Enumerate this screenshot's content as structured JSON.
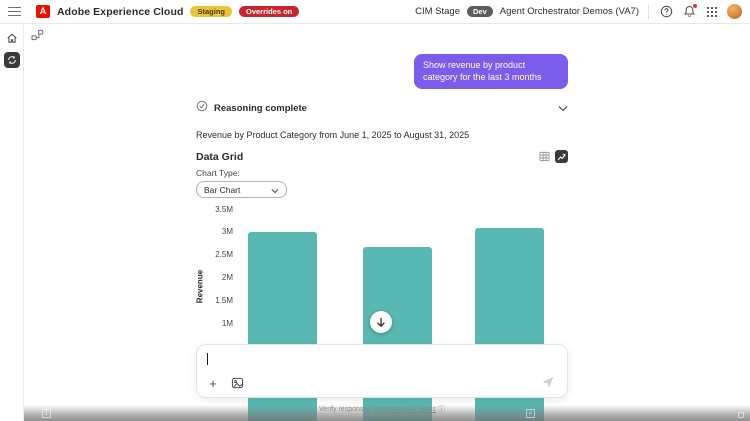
{
  "topbar": {
    "brand": "Adobe Experience Cloud",
    "staging_badge": "Staging",
    "overrides_badge": "Overrides on",
    "env_label": "CIM Stage",
    "dev_badge": "Dev",
    "org_name": "Agent Orchestrator Demos (VA7)"
  },
  "chat": {
    "user_message": "Show revenue by product category for the last 3 months",
    "reasoning_status": "Reasoning complete",
    "answer_text": "Revenue by Product Category from June 1, 2025 to August 31, 2025",
    "footer_note": "Verify responses",
    "footer_link": "Generative AI Terms"
  },
  "data_grid": {
    "title": "Data Grid",
    "chart_type_label": "Chart Type:",
    "chart_type_value": "Bar Chart"
  },
  "chart_data": {
    "type": "bar",
    "title": "Revenue by Product Category from June 1, 2025 to August 31, 2025",
    "ylabel": "Revenue",
    "yticks": [
      "3.5M",
      "3M",
      "2.5M",
      "2M",
      "1.5M",
      "1M"
    ],
    "ytick_values": [
      3500000,
      3000000,
      2500000,
      2000000,
      1500000,
      1000000
    ],
    "categories": [
      "",
      "",
      ""
    ],
    "categories_visible": false,
    "values": [
      3000000,
      2670000,
      3090000
    ],
    "ylim_visible": [
      1000000,
      3500000
    ],
    "grid": false,
    "legend": false,
    "bar_color": "#5ab8b2",
    "note_bottom_occluded": true
  },
  "icons": {
    "plus": "+",
    "adobe_a": "A",
    "info": "ⓘ"
  },
  "colors": {
    "accent_purple": "#7b5ceb",
    "bar_teal": "#5ab8b2",
    "staging_yellow": "#e8c53d",
    "overrides_red": "#c9252d",
    "dev_gray": "#5c5c5c",
    "adobe_red": "#eb1000"
  }
}
